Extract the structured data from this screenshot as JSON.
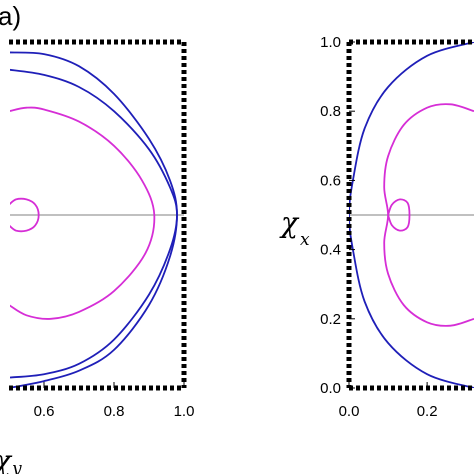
{
  "chart_data": [
    {
      "type": "line",
      "panel_label": "a)",
      "xlabel": {
        "symbol": "χ",
        "sub": "y"
      },
      "ylabel": null,
      "xlim": [
        0.5,
        1.0
      ],
      "ylim": [
        0.0,
        1.0
      ],
      "xticks": [
        0.6,
        0.8,
        1.0
      ],
      "x_tick_labels": [
        "0.6",
        "0.8",
        "1.0"
      ],
      "colors": {
        "blue": "#1f1fb8",
        "magenta": "#d62ed6",
        "axis": "#808080"
      },
      "series": [
        {
          "color": "blue",
          "points": [
            [
              0.5,
              0.97
            ],
            [
              0.6,
              0.965
            ],
            [
              0.7,
              0.93
            ],
            [
              0.8,
              0.85
            ],
            [
              0.9,
              0.72
            ],
            [
              0.96,
              0.6
            ],
            [
              0.98,
              0.5
            ],
            [
              0.96,
              0.38
            ],
            [
              0.9,
              0.24
            ],
            [
              0.8,
              0.11
            ],
            [
              0.7,
              0.05
            ],
            [
              0.6,
              0.02
            ],
            [
              0.5,
              0.0
            ]
          ]
        },
        {
          "color": "blue",
          "points": [
            [
              0.5,
              0.92
            ],
            [
              0.6,
              0.905
            ],
            [
              0.7,
              0.87
            ],
            [
              0.8,
              0.8
            ],
            [
              0.9,
              0.69
            ],
            [
              0.96,
              0.58
            ],
            [
              0.98,
              0.5
            ],
            [
              0.96,
              0.4
            ],
            [
              0.9,
              0.27
            ],
            [
              0.8,
              0.14
            ],
            [
              0.7,
              0.07
            ],
            [
              0.6,
              0.04
            ],
            [
              0.5,
              0.03
            ]
          ]
        },
        {
          "color": "magenta",
          "points": [
            [
              0.5,
              0.8
            ],
            [
              0.55,
              0.81
            ],
            [
              0.6,
              0.805
            ],
            [
              0.7,
              0.77
            ],
            [
              0.8,
              0.7
            ],
            [
              0.88,
              0.6
            ],
            [
              0.915,
              0.5
            ],
            [
              0.89,
              0.39
            ],
            [
              0.8,
              0.28
            ],
            [
              0.7,
              0.22
            ],
            [
              0.62,
              0.2
            ],
            [
              0.55,
              0.21
            ],
            [
              0.5,
              0.24
            ]
          ]
        },
        {
          "color": "magenta",
          "points": [
            [
              0.5,
              0.53
            ],
            [
              0.52,
              0.545
            ],
            [
              0.55,
              0.545
            ],
            [
              0.575,
              0.53
            ],
            [
              0.585,
              0.5
            ],
            [
              0.575,
              0.47
            ],
            [
              0.55,
              0.455
            ],
            [
              0.52,
              0.455
            ],
            [
              0.5,
              0.47
            ]
          ]
        }
      ]
    },
    {
      "type": "line",
      "panel_label": "",
      "xlabel": null,
      "ylabel": {
        "symbol": "χ",
        "sub": "x"
      },
      "xlim": [
        0.0,
        0.32
      ],
      "ylim": [
        0.0,
        1.0
      ],
      "xticks": [
        0.0,
        0.2
      ],
      "x_tick_labels": [
        "0.0",
        "0.2"
      ],
      "yticks": [
        0.0,
        0.2,
        0.4,
        0.6,
        0.8,
        1.0
      ],
      "y_tick_labels": [
        "0.0",
        "0.2",
        "0.4",
        "0.6",
        "0.8",
        "1.0"
      ],
      "colors": {
        "blue": "#1f1fb8",
        "magenta": "#d62ed6",
        "axis": "#808080"
      },
      "series": [
        {
          "color": "blue",
          "points": [
            [
              0.32,
              1.0
            ],
            [
              0.2,
              0.96
            ],
            [
              0.1,
              0.87
            ],
            [
              0.04,
              0.75
            ],
            [
              0.01,
              0.6
            ],
            [
              0.0,
              0.5
            ],
            [
              0.01,
              0.4
            ],
            [
              0.04,
              0.25
            ],
            [
              0.1,
              0.13
            ],
            [
              0.2,
              0.04
            ],
            [
              0.32,
              0.0
            ]
          ]
        },
        {
          "color": "magenta",
          "points": [
            [
              0.32,
              0.8
            ],
            [
              0.26,
              0.82
            ],
            [
              0.2,
              0.81
            ],
            [
              0.14,
              0.76
            ],
            [
              0.1,
              0.67
            ],
            [
              0.09,
              0.58
            ],
            [
              0.1,
              0.5
            ],
            [
              0.09,
              0.42
            ],
            [
              0.1,
              0.33
            ],
            [
              0.14,
              0.24
            ],
            [
              0.2,
              0.19
            ],
            [
              0.26,
              0.18
            ],
            [
              0.32,
              0.2
            ]
          ]
        },
        {
          "color": "magenta",
          "points": [
            [
              0.1,
              0.5
            ],
            [
              0.11,
              0.53
            ],
            [
              0.13,
              0.545
            ],
            [
              0.15,
              0.535
            ],
            [
              0.155,
              0.5
            ],
            [
              0.15,
              0.465
            ],
            [
              0.13,
              0.455
            ],
            [
              0.11,
              0.47
            ],
            [
              0.1,
              0.5
            ]
          ]
        }
      ]
    }
  ]
}
